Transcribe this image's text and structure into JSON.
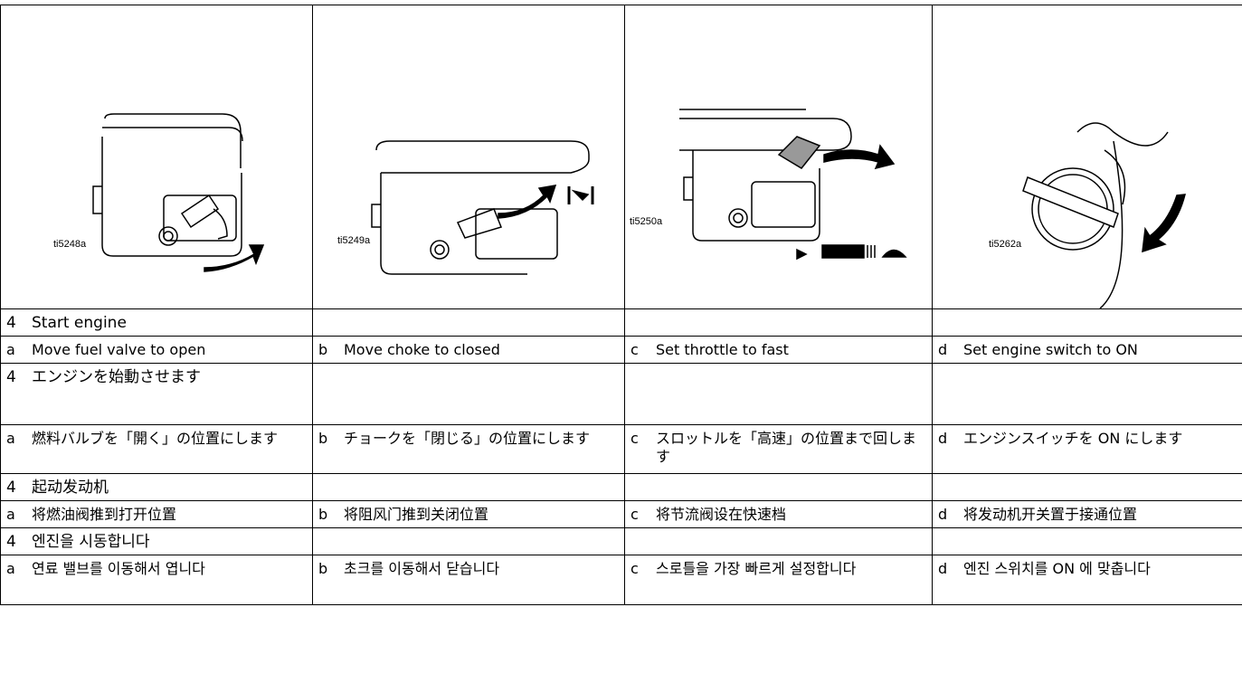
{
  "figures": [
    "ti5248a",
    "ti5249a",
    "ti5250a",
    "ti5262a"
  ],
  "sections": [
    {
      "heading": {
        "number": "4",
        "text": "Start engine"
      },
      "steps": [
        {
          "letter": "a",
          "text": "Move fuel valve to open"
        },
        {
          "letter": "b",
          "text": "Move choke to closed"
        },
        {
          "letter": "c",
          "text": "Set throttle to fast"
        },
        {
          "letter": "d",
          "text": "Set engine switch to ON"
        }
      ]
    },
    {
      "heading": {
        "number": "4",
        "text": "エンジンを始動させます"
      },
      "steps": [
        {
          "letter": "a",
          "text": "燃料バルブを「開く」の位置にします"
        },
        {
          "letter": "b",
          "text": "チョークを「閉じる」の位置にします"
        },
        {
          "letter": "c",
          "text": "スロットルを「高速」の位置まで回します"
        },
        {
          "letter": "d",
          "text": "エンジンスイッチを ON にします"
        }
      ]
    },
    {
      "heading": {
        "number": "4",
        "text": "起动发动机"
      },
      "steps": [
        {
          "letter": "a",
          "text": "将燃油阀推到打开位置"
        },
        {
          "letter": "b",
          "text": "将阻风门推到关闭位置"
        },
        {
          "letter": "c",
          "text": "将节流阀设在快速档"
        },
        {
          "letter": "d",
          "text": "将发动机开关置于接通位置"
        }
      ]
    },
    {
      "heading": {
        "number": "4",
        "text": "엔진을 시동합니다"
      },
      "steps": [
        {
          "letter": "a",
          "text": "연료 밸브를 이동해서 엽니다"
        },
        {
          "letter": "b",
          "text": "초크를 이동해서 닫습니다"
        },
        {
          "letter": "c",
          "text": "스로틀을 가장 빠르게 설정합니다"
        },
        {
          "letter": "d",
          "text": "엔진 스위치를 ON 에 맞춥니다"
        }
      ]
    }
  ]
}
